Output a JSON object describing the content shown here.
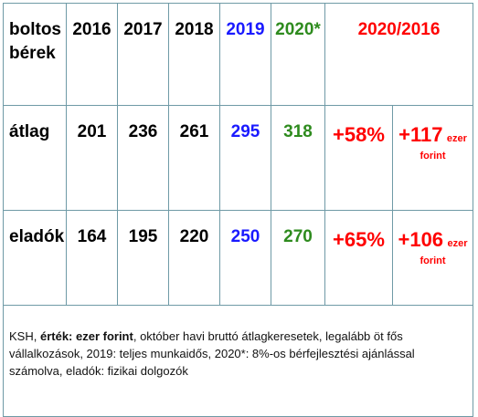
{
  "header": {
    "label_line1": "boltos",
    "label_line2": "bérek",
    "y2016": "2016",
    "y2017": "2017",
    "y2018": "2018",
    "y2019": "2019",
    "y2020": "2020*",
    "compare": "2020/2016"
  },
  "rows": [
    {
      "label": "átlag",
      "v2016": "201",
      "v2017": "236",
      "v2018": "261",
      "v2019": "295",
      "v2020": "318",
      "pct": "+58%",
      "diff_value": "+117",
      "diff_unit1": "ezer",
      "diff_unit2": "forint"
    },
    {
      "label": "eladók",
      "v2016": "164",
      "v2017": "195",
      "v2018": "220",
      "v2019": "250",
      "v2020": "270",
      "pct": "+65%",
      "diff_value": "+106",
      "diff_unit1": "ezer",
      "diff_unit2": "forint"
    }
  ],
  "note": {
    "part1": "KSH, ",
    "bold": "érték: ezer forint",
    "part2": ", október havi bruttó átlagkeresetek, legalább öt fős vállalkozások, 2019: teljes munkaidős, 2020*: 8%-os bérfejlesztési ajánlással számolva, eladók: fizikai dolgozók"
  },
  "colors": {
    "border": "#6f9aa6",
    "blue": "#1a1aff",
    "green": "#2e8b1e",
    "red": "#ff0000"
  }
}
